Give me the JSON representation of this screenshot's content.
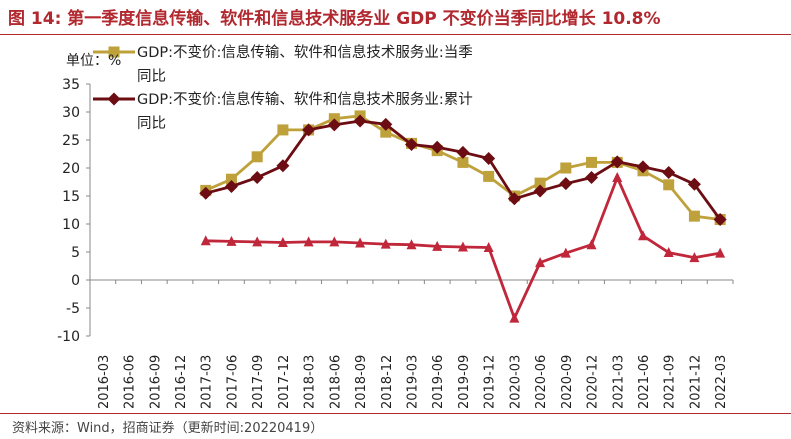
{
  "figure_title": "图 14:  第一季度信息传输、软件和信息技术服务业 GDP 不变价当季同比增长 10.8%",
  "source": "资料来源：Wind，招商证券（更新时间:20220419）",
  "colors": {
    "title": "#b1282f",
    "series_gold": "#bea13b",
    "series_darkred": "#6b0d12",
    "series_red": "#c0273a"
  },
  "chart_data": {
    "type": "line",
    "unit_label": "单位：%",
    "ylim": [
      -10,
      35
    ],
    "yticks": [
      35,
      30,
      25,
      20,
      15,
      10,
      5,
      0,
      -5,
      -10
    ],
    "categories": [
      "2016-03",
      "2016-06",
      "2016-09",
      "2016-12",
      "2017-03",
      "2017-06",
      "2017-09",
      "2017-12",
      "2018-03",
      "2018-06",
      "2018-09",
      "2018-12",
      "2019-03",
      "2019-06",
      "2019-09",
      "2019-12",
      "2020-03",
      "2020-06",
      "2020-09",
      "2020-12",
      "2021-03",
      "2021-06",
      "2021-09",
      "2021-12",
      "2022-03"
    ],
    "series": [
      {
        "name": "GDP:不变价:信息传输、软件和信息技术服务业:当季同比",
        "name_lines": [
          "GDP:不变价:信息传输、软件和信息技术服务业:当季",
          "同比"
        ],
        "marker": "square",
        "color": "#bea13b",
        "values": [
          null,
          null,
          null,
          null,
          16.0,
          18.0,
          22.0,
          26.8,
          26.8,
          28.8,
          29.3,
          26.4,
          24.4,
          23.1,
          21.0,
          18.5,
          15.0,
          17.3,
          20.0,
          21.0,
          21.0,
          19.5,
          17.0,
          11.4,
          10.8
        ]
      },
      {
        "name": "GDP:不变价:信息传输、软件和信息技术服务业:累计同比",
        "name_lines": [
          "GDP:不变价:信息传输、软件和信息技术服务业:累计",
          "同比"
        ],
        "marker": "diamond",
        "color": "#6b0d12",
        "values": [
          null,
          null,
          null,
          null,
          15.5,
          16.7,
          18.3,
          20.4,
          26.8,
          27.7,
          28.4,
          27.8,
          24.2,
          23.7,
          22.8,
          21.7,
          14.5,
          15.9,
          17.2,
          18.3,
          21.1,
          20.2,
          19.2,
          17.1,
          10.8
        ]
      },
      {
        "name": "",
        "marker": "triangle",
        "color": "#c0273a",
        "values": [
          null,
          null,
          null,
          null,
          7.0,
          6.9,
          6.8,
          6.7,
          6.8,
          6.8,
          6.6,
          6.4,
          6.3,
          6.0,
          5.9,
          5.8,
          -6.8,
          3.1,
          4.8,
          6.3,
          18.3,
          7.9,
          4.9,
          4.0,
          4.8
        ]
      }
    ]
  }
}
